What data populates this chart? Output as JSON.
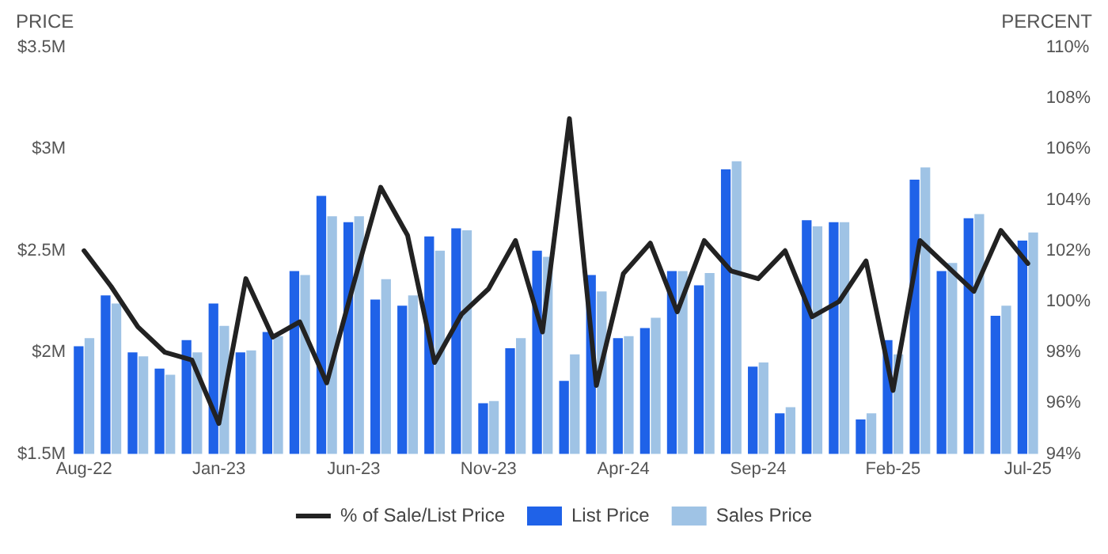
{
  "chart_data": {
    "type": "bar",
    "ylabel": "PRICE",
    "y2label": "PERCENT",
    "categories": [
      "Aug-22",
      null,
      null,
      null,
      null,
      "Jan-23",
      null,
      null,
      null,
      null,
      "Jun-23",
      null,
      null,
      null,
      null,
      "Nov-23",
      null,
      null,
      null,
      null,
      "Apr-24",
      null,
      null,
      null,
      null,
      "Sep-24",
      null,
      null,
      null,
      null,
      "Feb-25",
      null,
      null,
      null,
      null,
      "Jul-25"
    ],
    "series": [
      {
        "name": "% of Sale/List Price",
        "type": "line",
        "axis": "y2",
        "color": "#222222",
        "values": [
          102.0,
          100.6,
          99.0,
          98.0,
          97.7,
          95.2,
          100.9,
          98.6,
          99.2,
          96.8,
          100.7,
          104.5,
          102.6,
          97.6,
          99.5,
          100.5,
          102.4,
          98.8,
          107.2,
          96.7,
          101.1,
          102.3,
          99.6,
          102.4,
          101.2,
          100.9,
          102.0,
          99.4,
          100.0,
          101.6,
          96.5,
          102.4,
          101.4,
          100.4,
          102.8,
          101.5
        ]
      },
      {
        "name": "List Price",
        "color": "#1f62e8",
        "values": [
          2.03,
          2.28,
          2.0,
          1.92,
          2.06,
          2.24,
          2.0,
          2.1,
          2.4,
          2.77,
          2.64,
          2.26,
          2.23,
          2.57,
          2.61,
          1.75,
          2.02,
          2.5,
          1.86,
          2.38,
          2.07,
          2.12,
          2.4,
          2.33,
          2.9,
          1.93,
          1.7,
          2.65,
          2.64,
          1.67,
          2.06,
          2.85,
          2.4,
          2.66,
          2.18,
          2.55
        ]
      },
      {
        "name": "Sales Price",
        "color": "#9fc3e5",
        "values": [
          2.07,
          2.24,
          1.98,
          1.89,
          2.0,
          2.13,
          2.01,
          2.08,
          2.38,
          2.67,
          2.67,
          2.36,
          2.28,
          2.5,
          2.6,
          1.76,
          2.07,
          2.47,
          1.99,
          2.3,
          2.08,
          2.17,
          2.4,
          2.39,
          2.94,
          1.95,
          1.73,
          2.62,
          2.64,
          1.7,
          1.99,
          2.91,
          2.44,
          2.68,
          2.23,
          2.59
        ]
      }
    ],
    "ylim": [
      1.5,
      3.5
    ],
    "yticks": [
      {
        "value": 1.5,
        "label": "$1.5M"
      },
      {
        "value": 2,
        "label": "$2M"
      },
      {
        "value": 2.5,
        "label": "$2.5M"
      },
      {
        "value": 3,
        "label": "$3M"
      },
      {
        "value": 3.5,
        "label": "$3.5M"
      }
    ],
    "y2lim": [
      94,
      110
    ],
    "y2ticks": [
      {
        "value": 94,
        "label": "94%"
      },
      {
        "value": 96,
        "label": "96%"
      },
      {
        "value": 98,
        "label": "98%"
      },
      {
        "value": 100,
        "label": "100%"
      },
      {
        "value": 102,
        "label": "102%"
      },
      {
        "value": 104,
        "label": "104%"
      },
      {
        "value": 106,
        "label": "106%"
      },
      {
        "value": 108,
        "label": "108%"
      },
      {
        "value": 110,
        "label": "110%"
      }
    ],
    "grid": false,
    "legend": "bottom"
  }
}
